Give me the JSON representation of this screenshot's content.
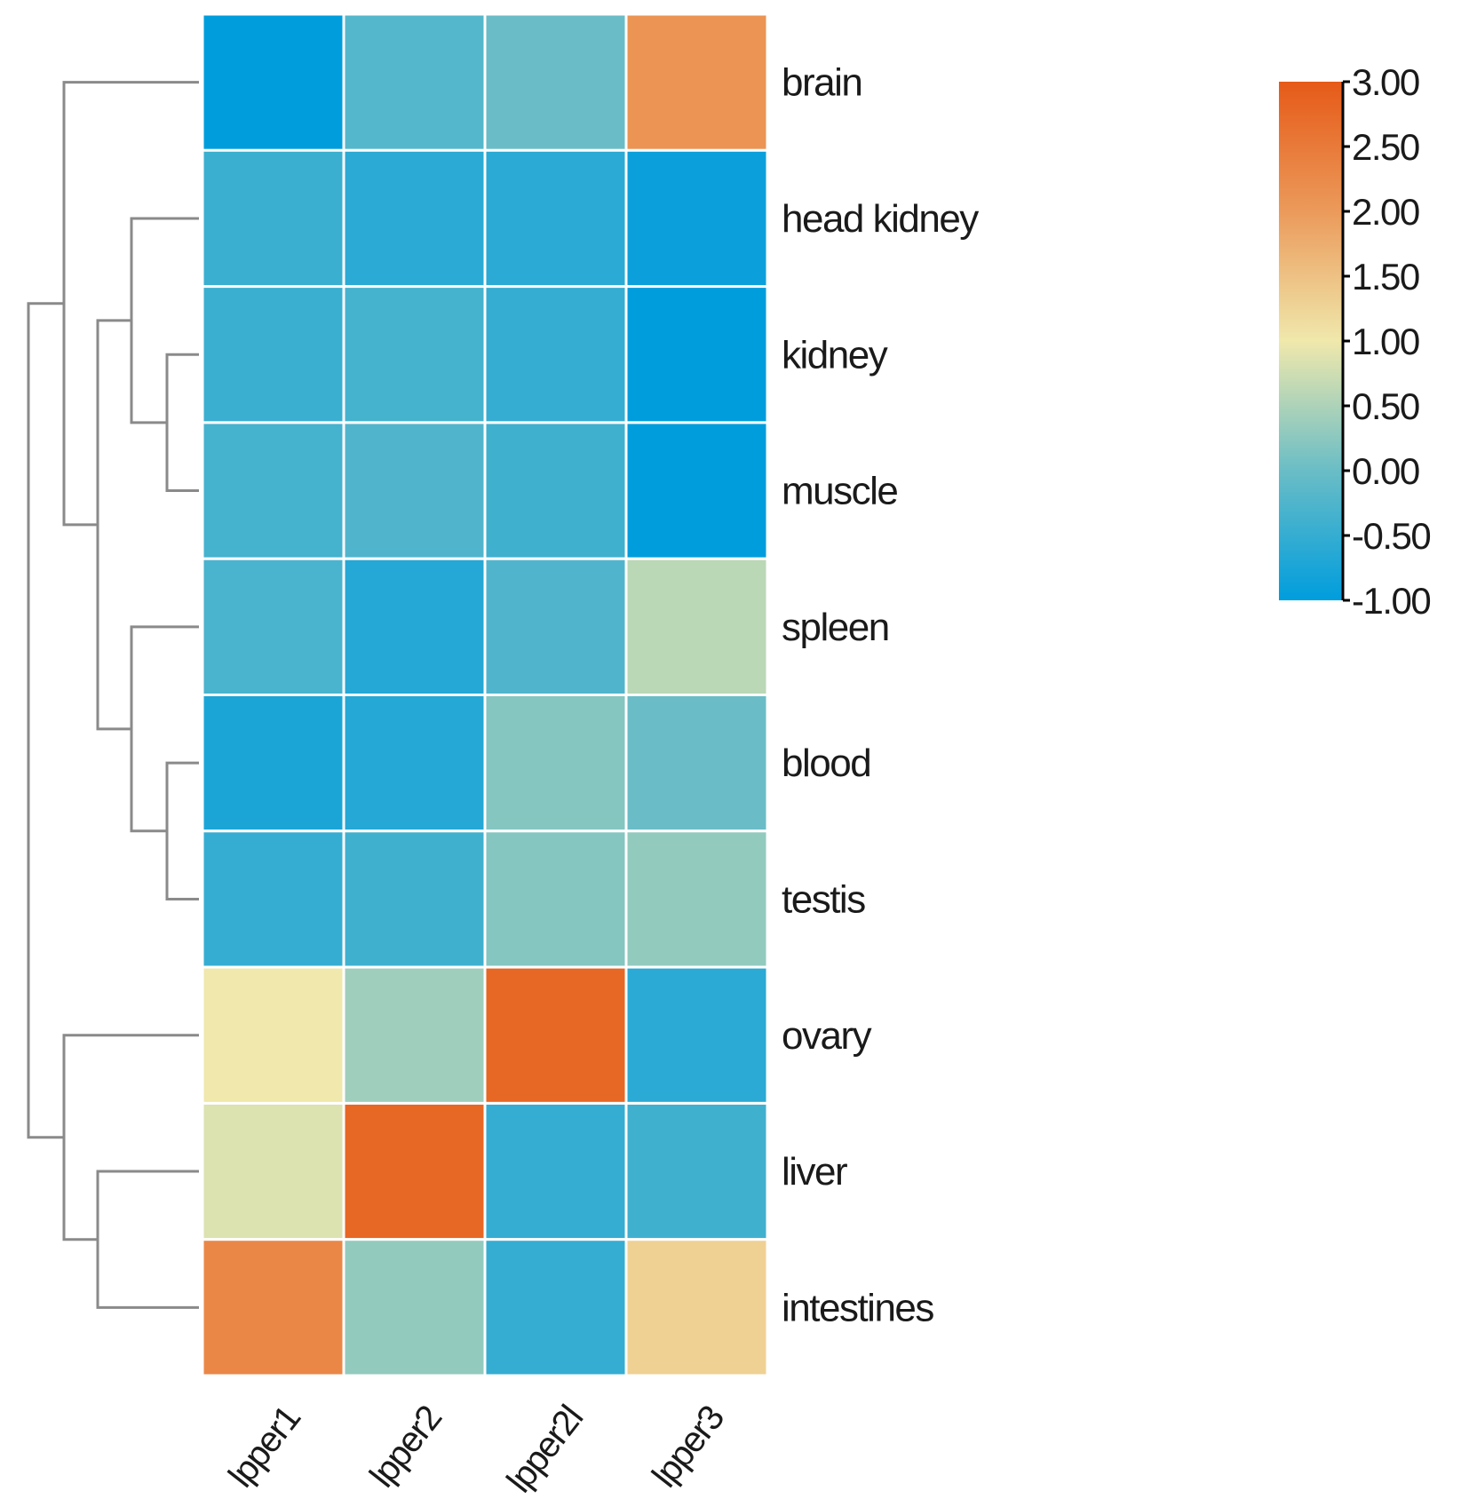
{
  "chart_data": {
    "type": "heatmap",
    "title": "",
    "rows": [
      "brain",
      "head kidney",
      "kidney",
      "muscle",
      "spleen",
      "blood",
      "testis",
      "ovary",
      "liver",
      "intestines"
    ],
    "columns": [
      "lpper1",
      "lpper2",
      "lpper2l",
      "lpper3"
    ],
    "values": [
      [
        -1.0,
        -0.2,
        0.0,
        2.1
      ],
      [
        -0.45,
        -0.6,
        -0.6,
        -0.9
      ],
      [
        -0.45,
        -0.35,
        -0.5,
        -1.0
      ],
      [
        -0.35,
        -0.25,
        -0.4,
        -1.0
      ],
      [
        -0.3,
        -0.65,
        -0.25,
        0.6
      ],
      [
        -0.75,
        -0.65,
        0.2,
        0.0
      ],
      [
        -0.5,
        -0.4,
        0.2,
        0.3
      ],
      [
        1.0,
        0.4,
        2.8,
        -0.6
      ],
      [
        0.85,
        2.8,
        -0.5,
        -0.4
      ],
      [
        2.3,
        0.3,
        -0.5,
        1.3
      ]
    ],
    "colorbar": {
      "min": -1.0,
      "max": 3.0,
      "ticks": [
        "3.00",
        "2.50",
        "2.00",
        "1.50",
        "1.00",
        "0.50",
        "0.00",
        "-0.50",
        "-1.00"
      ],
      "tick_values": [
        3.0,
        2.5,
        2.0,
        1.5,
        1.0,
        0.5,
        0.0,
        -0.5,
        -1.0
      ],
      "colors": [
        "#009ddd",
        "#6abdc6",
        "#f0e8ac",
        "#eb9a5b",
        "#e65a18"
      ],
      "color_stops": [
        0,
        0.25,
        0.5,
        0.75,
        1.0
      ]
    },
    "row_dendrogram": true,
    "legend_position": "top-right"
  }
}
